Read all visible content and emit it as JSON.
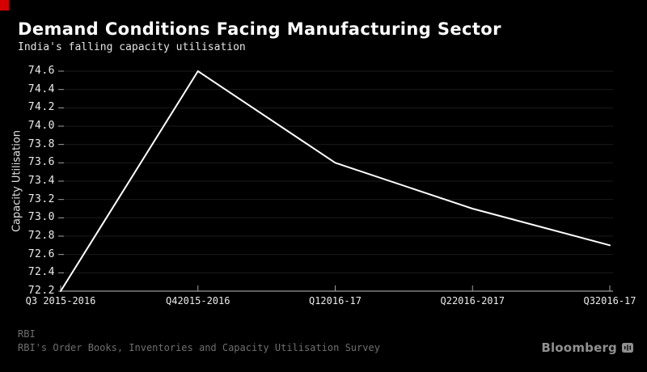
{
  "header": {
    "title": "Demand Conditions Facing Manufacturing Sector",
    "subtitle": "India's falling capacity utilisation"
  },
  "chart_data": {
    "type": "line",
    "title": "Demand Conditions Facing Manufacturing Sector",
    "subtitle": "India's falling capacity utilisation",
    "categories": [
      "Q3 2015-2016",
      "Q42015-2016",
      "Q12016-17",
      "Q22016-2017",
      "Q32016-17"
    ],
    "values": [
      72.2,
      74.6,
      73.6,
      73.1,
      72.7
    ],
    "xlabel": "",
    "ylabel": "Capacity Utilisation",
    "ylim": [
      72.2,
      74.6
    ],
    "ytick_step": 0.2,
    "ytick_labels": [
      "74.6",
      "74.4",
      "74.2",
      "74.0",
      "73.8",
      "73.6",
      "73.4",
      "73.2",
      "73.0",
      "72.8",
      "72.6",
      "72.4",
      "72.2"
    ],
    "grid": "horizontal-faint",
    "legend": "none",
    "line_color": "#ffffff"
  },
  "footer": {
    "source_line1": "RBI",
    "source_line2": "RBI's Order Books, Inventories and Capacity Utilisation Survey",
    "brand": "Bloomberg"
  },
  "colors": {
    "background": "#000000",
    "accent_mark": "#d60000",
    "grid_line": "#1b1b1b",
    "axis_line": "#999999",
    "tick_mark": "#a0a0a0",
    "footer_text": "#6f6f6f",
    "brand_text": "#909090"
  }
}
